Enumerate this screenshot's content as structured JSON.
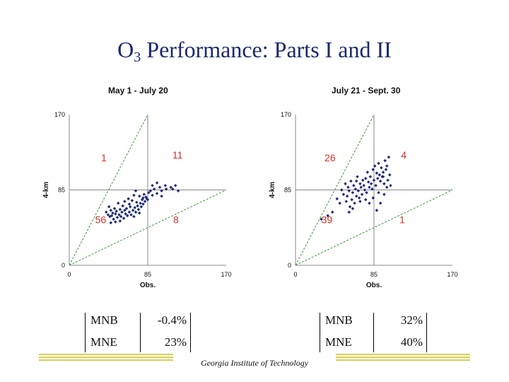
{
  "title": {
    "main": "O",
    "sub": "3",
    "rest": " Performance: Parts I and II"
  },
  "chart_data": [
    {
      "type": "scatter",
      "title": "May 1 - July 20",
      "xlabel": "Obs.",
      "ylabel": "4-km",
      "xlim": [
        0,
        170
      ],
      "ylim": [
        0,
        170
      ],
      "xticks": [
        "0",
        "85",
        "170"
      ],
      "yticks": [
        "0",
        "85",
        "170"
      ],
      "guides": {
        "center_lines": true,
        "ratio_lines": [
          2,
          0.5
        ]
      },
      "quadrant_counts": {
        "upper_left": "1",
        "upper_right": "11",
        "lower_left": "56",
        "lower_right": "8"
      },
      "color": "#1f2a7a",
      "points": [
        [
          40,
          60
        ],
        [
          42,
          57
        ],
        [
          44,
          55
        ],
        [
          45,
          62
        ],
        [
          46,
          56
        ],
        [
          47,
          59
        ],
        [
          48,
          52
        ],
        [
          49,
          64
        ],
        [
          50,
          58
        ],
        [
          51,
          61
        ],
        [
          52,
          54
        ],
        [
          53,
          70
        ],
        [
          54,
          57
        ],
        [
          55,
          63
        ],
        [
          56,
          55
        ],
        [
          57,
          60
        ],
        [
          58,
          67
        ],
        [
          59,
          53
        ],
        [
          60,
          62
        ],
        [
          61,
          58
        ],
        [
          62,
          64
        ],
        [
          63,
          56
        ],
        [
          64,
          75
        ],
        [
          65,
          60
        ],
        [
          66,
          66
        ],
        [
          67,
          57
        ],
        [
          68,
          73
        ],
        [
          69,
          62
        ],
        [
          70,
          79
        ],
        [
          71,
          65
        ],
        [
          72,
          60
        ],
        [
          73,
          71
        ],
        [
          74,
          67
        ],
        [
          75,
          63
        ],
        [
          76,
          78
        ],
        [
          77,
          70
        ],
        [
          78,
          66
        ],
        [
          79,
          74
        ],
        [
          80,
          69
        ],
        [
          81,
          80
        ],
        [
          82,
          72
        ],
        [
          83,
          77
        ],
        [
          84,
          75
        ],
        [
          86,
          82
        ],
        [
          88,
          84
        ],
        [
          90,
          79
        ],
        [
          92,
          86
        ],
        [
          95,
          81
        ],
        [
          98,
          88
        ],
        [
          100,
          84
        ],
        [
          104,
          90
        ],
        [
          110,
          88
        ],
        [
          112,
          86
        ],
        [
          118,
          84
        ],
        [
          50,
          49
        ],
        [
          55,
          50
        ],
        [
          60,
          72
        ],
        [
          65,
          69
        ],
        [
          72,
          84
        ],
        [
          80,
          76
        ],
        [
          85,
          74
        ],
        [
          90,
          90
        ],
        [
          95,
          93
        ],
        [
          100,
          78
        ],
        [
          105,
          86
        ],
        [
          115,
          90
        ],
        [
          45,
          48
        ],
        [
          43,
          66
        ],
        [
          70,
          55
        ],
        [
          76,
          59
        ]
      ]
    },
    {
      "type": "scatter",
      "title": "July 21 - Sept. 30",
      "xlabel": "Obs.",
      "ylabel": "4-km",
      "xlim": [
        0,
        170
      ],
      "ylim": [
        0,
        170
      ],
      "xticks": [
        "0",
        "85",
        "170"
      ],
      "yticks": [
        "0",
        "85",
        "170"
      ],
      "guides": {
        "center_lines": true,
        "ratio_lines": [
          2,
          0.5
        ]
      },
      "quadrant_counts": {
        "upper_left": "26",
        "upper_right": "4",
        "lower_left": "39",
        "lower_right": "1"
      },
      "color": "#1f2a7a",
      "points": [
        [
          28,
          52
        ],
        [
          35,
          56
        ],
        [
          40,
          60
        ],
        [
          45,
          75
        ],
        [
          48,
          70
        ],
        [
          50,
          85
        ],
        [
          52,
          80
        ],
        [
          54,
          92
        ],
        [
          55,
          72
        ],
        [
          56,
          78
        ],
        [
          57,
          88
        ],
        [
          58,
          84
        ],
        [
          59,
          66
        ],
        [
          60,
          95
        ],
        [
          61,
          74
        ],
        [
          62,
          82
        ],
        [
          63,
          90
        ],
        [
          64,
          70
        ],
        [
          65,
          86
        ],
        [
          66,
          78
        ],
        [
          67,
          100
        ],
        [
          68,
          84
        ],
        [
          69,
          76
        ],
        [
          70,
          92
        ],
        [
          71,
          88
        ],
        [
          72,
          80
        ],
        [
          73,
          96
        ],
        [
          74,
          90
        ],
        [
          75,
          85
        ],
        [
          76,
          98
        ],
        [
          77,
          82
        ],
        [
          78,
          105
        ],
        [
          79,
          94
        ],
        [
          80,
          88
        ],
        [
          81,
          100
        ],
        [
          82,
          92
        ],
        [
          83,
          86
        ],
        [
          84,
          108
        ],
        [
          85,
          96
        ],
        [
          86,
          112
        ],
        [
          87,
          90
        ],
        [
          88,
          104
        ],
        [
          89,
          98
        ],
        [
          90,
          115
        ],
        [
          91,
          102
        ],
        [
          92,
          95
        ],
        [
          93,
          110
        ],
        [
          94,
          100
        ],
        [
          95,
          105
        ],
        [
          96,
          92
        ],
        [
          97,
          118
        ],
        [
          98,
          108
        ],
        [
          99,
          88
        ],
        [
          100,
          96
        ],
        [
          101,
          122
        ],
        [
          102,
          102
        ],
        [
          103,
          90
        ],
        [
          88,
          62
        ],
        [
          92,
          70
        ],
        [
          96,
          80
        ],
        [
          58,
          60
        ],
        [
          62,
          64
        ],
        [
          70,
          72
        ],
        [
          76,
          74
        ],
        [
          80,
          70
        ],
        [
          84,
          76
        ],
        [
          90,
          82
        ],
        [
          95,
          100
        ],
        [
          99,
          112
        ],
        [
          66,
          95
        ]
      ]
    }
  ],
  "stats_left": {
    "mnb_label": "MNB",
    "mnb_value": "-0.4%",
    "mne_label": "MNE",
    "mne_value": "23%"
  },
  "stats_right": {
    "mnb_label": "MNB",
    "mnb_value": "32%",
    "mne_label": "MNE",
    "mne_value": "40%"
  },
  "footer": "Georgia Institute of Technology"
}
